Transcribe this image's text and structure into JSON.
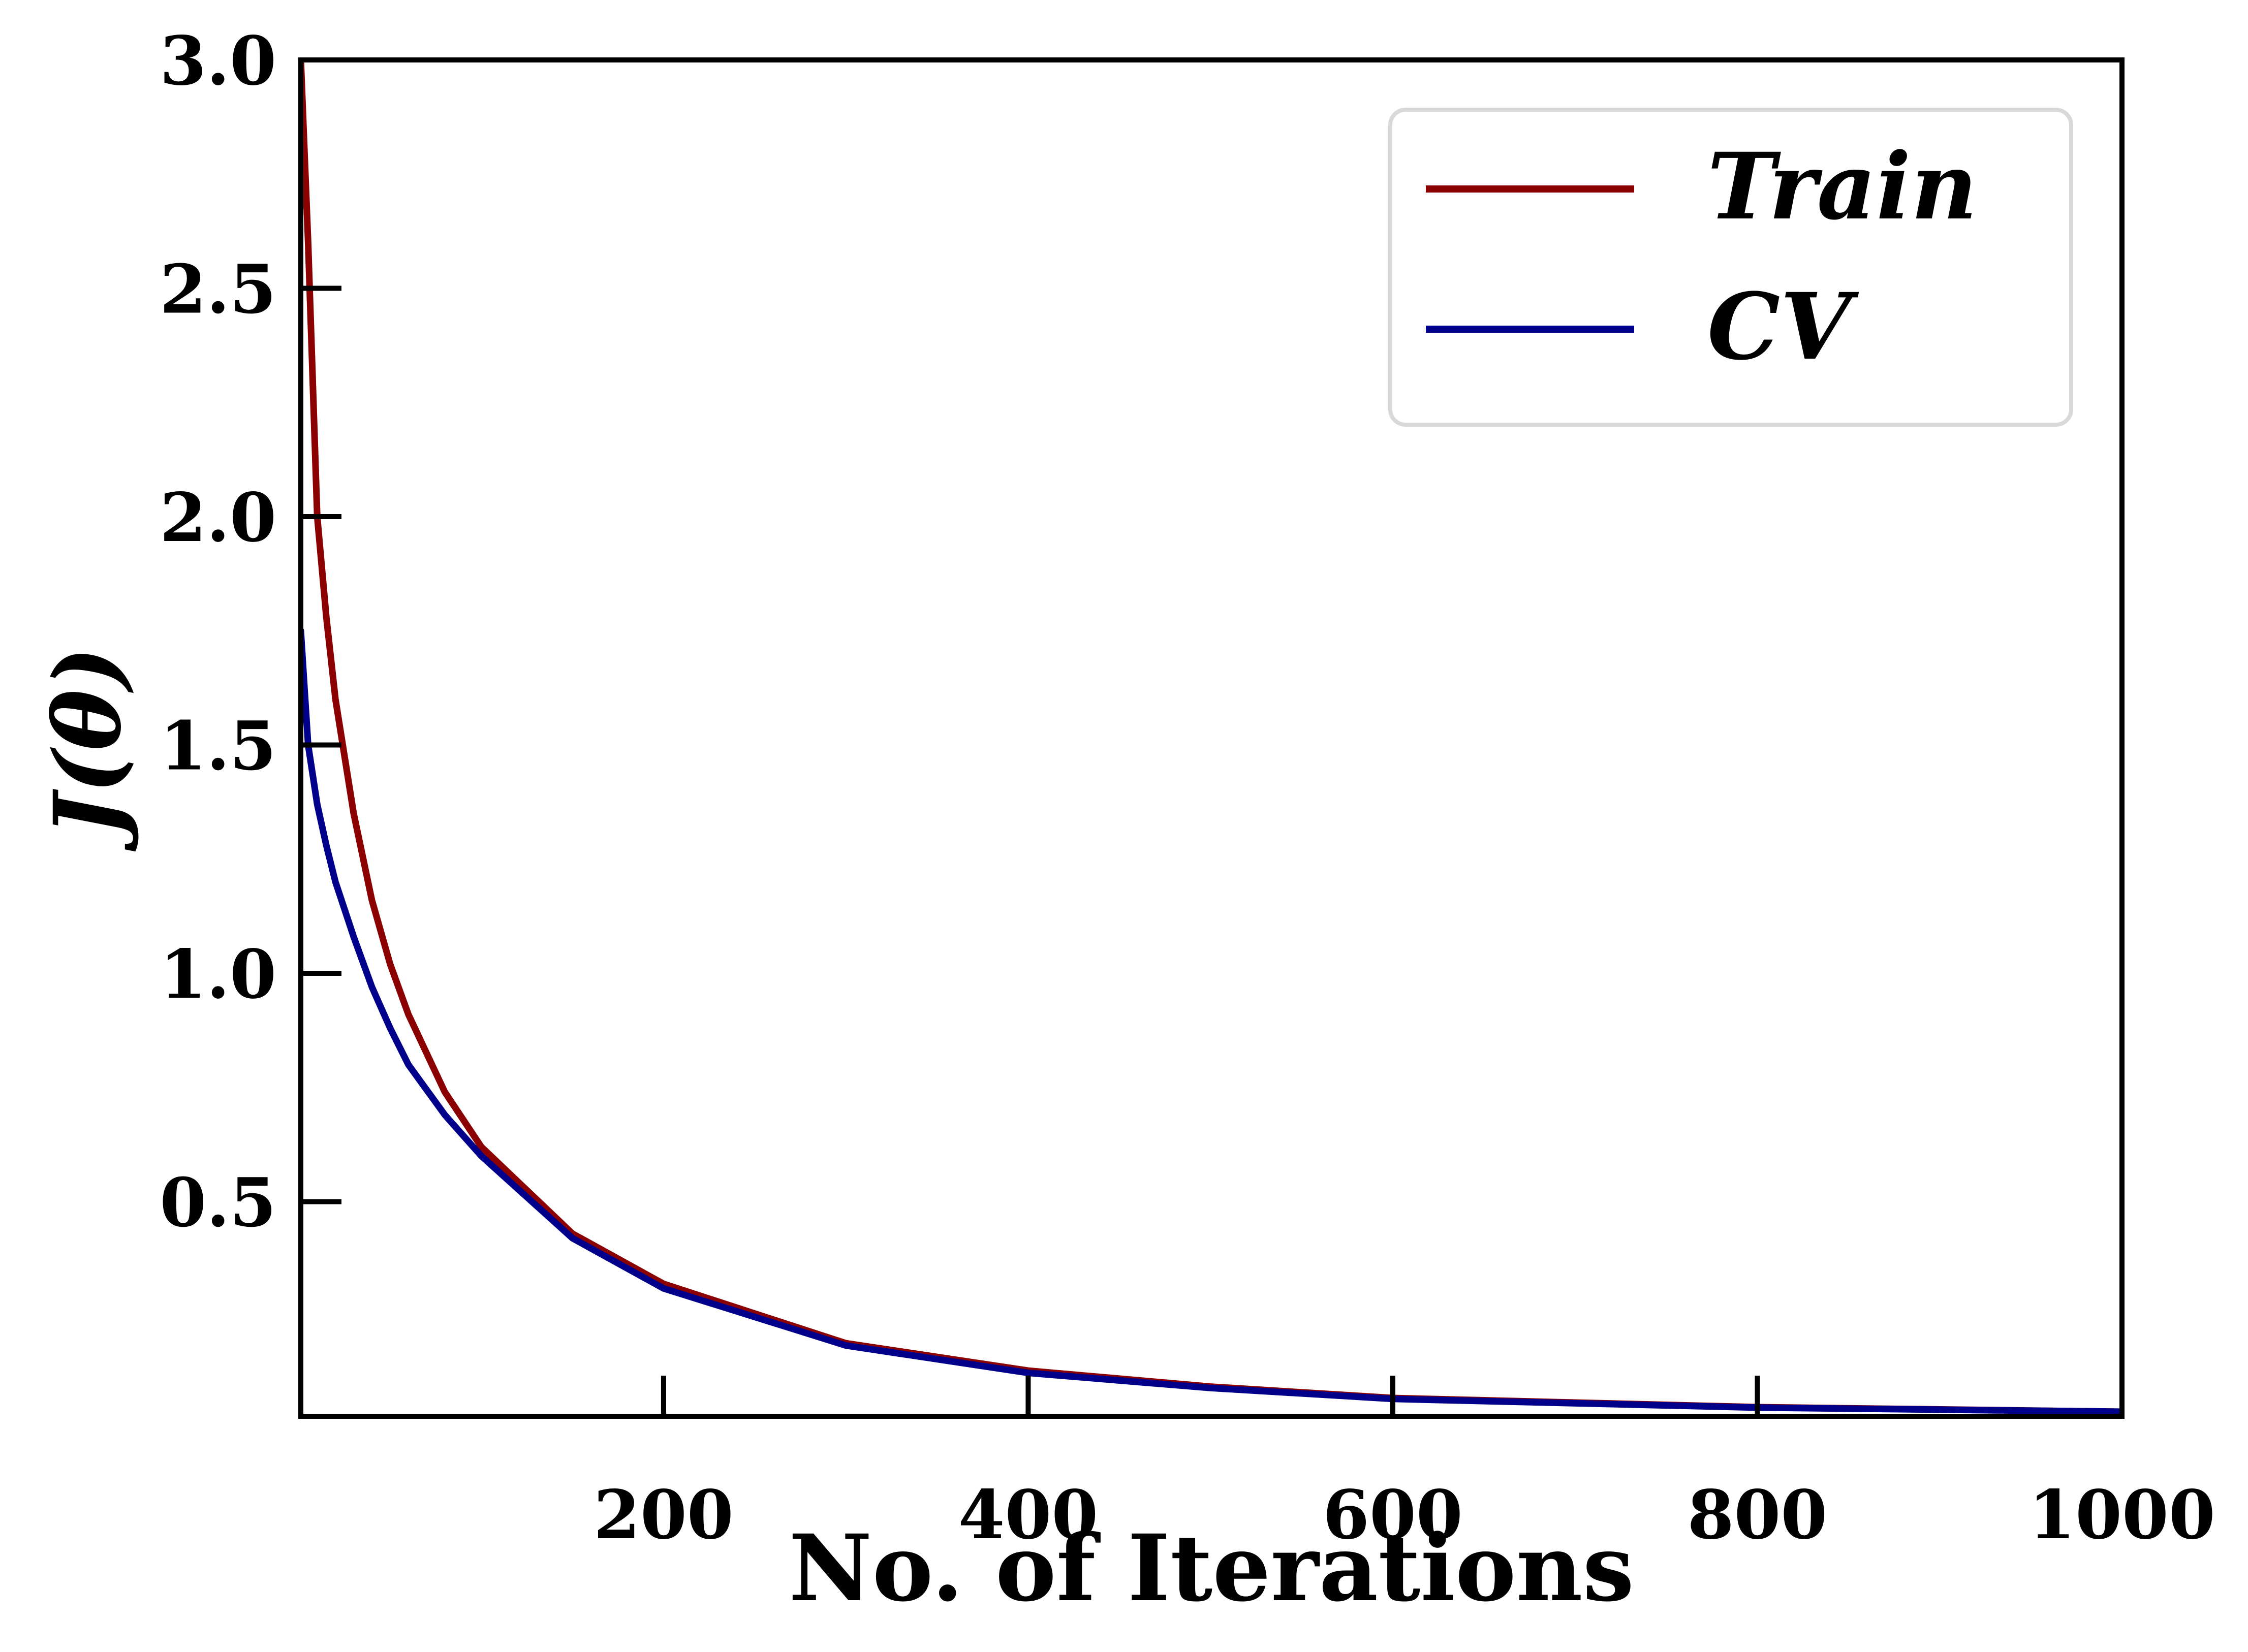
{
  "chart_data": {
    "type": "line",
    "title": "",
    "xlabel": "No. of Iterations",
    "ylabel": "J(θ)",
    "xlim": [
      1,
      1000
    ],
    "ylim": [
      0.03,
      3.0
    ],
    "xticks": [
      200,
      400,
      600,
      800,
      1000
    ],
    "xtick_labels": [
      "200",
      "400",
      "600",
      "800",
      "1000"
    ],
    "yticks": [
      0.5,
      1.0,
      1.5,
      2.0,
      2.5,
      3.0
    ],
    "ytick_labels": [
      "0.5",
      "1.0",
      "1.5",
      "2.0",
      "2.5",
      "3.0"
    ],
    "grid": false,
    "legend_position": "top-right",
    "series": [
      {
        "name": "Train",
        "color": "#8b0000",
        "x": [
          1,
          5,
          10,
          15,
          20,
          30,
          40,
          50,
          60,
          80,
          100,
          150,
          200,
          300,
          400,
          500,
          600,
          800,
          1000
        ],
        "y": [
          3.0,
          2.6,
          2.0,
          1.78,
          1.6,
          1.35,
          1.16,
          1.02,
          0.91,
          0.74,
          0.62,
          0.43,
          0.32,
          0.19,
          0.13,
          0.095,
          0.07,
          0.05,
          0.04
        ]
      },
      {
        "name": "CV",
        "color": "#00008b",
        "x": [
          1,
          5,
          10,
          15,
          20,
          30,
          40,
          50,
          60,
          80,
          100,
          150,
          200,
          300,
          400,
          500,
          600,
          800,
          1000
        ],
        "y": [
          1.75,
          1.5,
          1.37,
          1.28,
          1.2,
          1.08,
          0.97,
          0.88,
          0.8,
          0.69,
          0.6,
          0.42,
          0.31,
          0.185,
          0.125,
          0.092,
          0.068,
          0.049,
          0.04
        ]
      }
    ]
  }
}
